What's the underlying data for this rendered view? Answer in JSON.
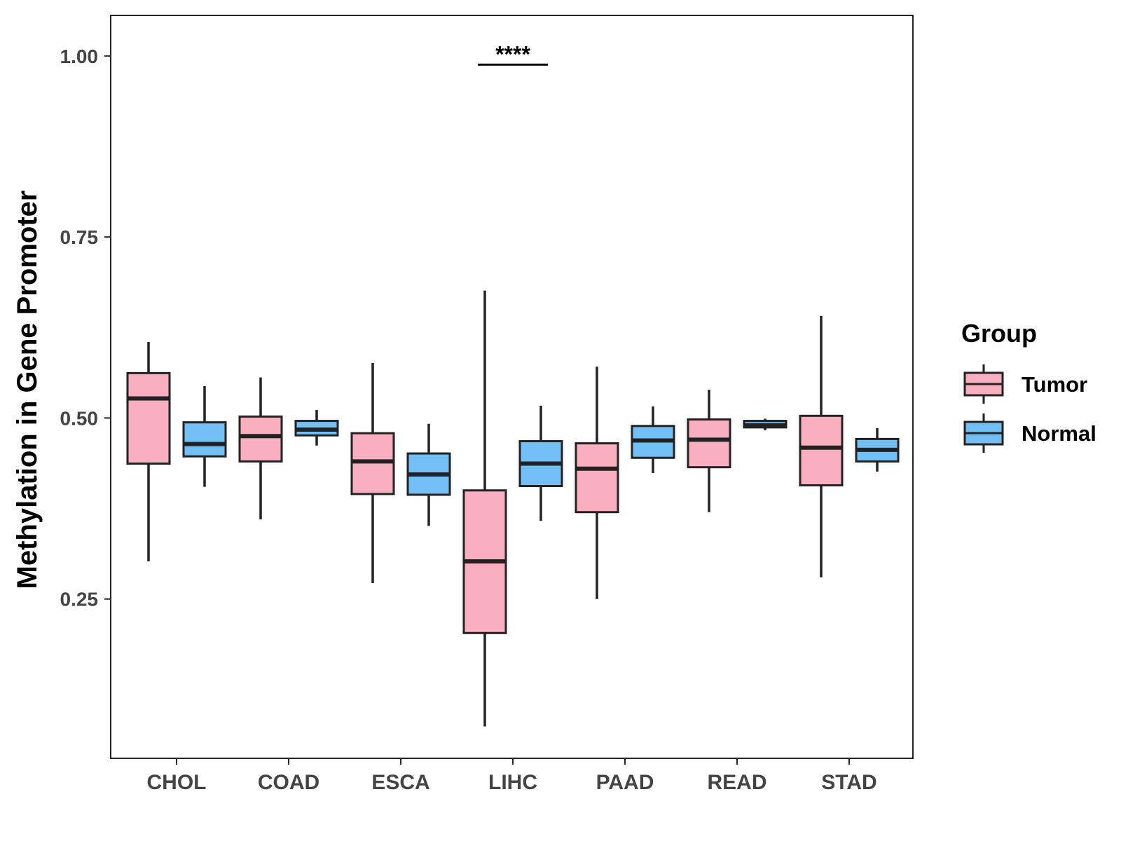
{
  "chart_data": {
    "type": "boxplot",
    "title": "",
    "xlabel": "",
    "ylabel": "Methylation in Gene Promoter",
    "ylim": [
      0.03,
      1.056
    ],
    "yticks": [
      0.25,
      0.5,
      0.75,
      1.0
    ],
    "ytick_labels": [
      "0.25",
      "0.50",
      "0.75",
      "1.00"
    ],
    "grid": false,
    "categories": [
      "CHOL",
      "COAD",
      "ESCA",
      "LIHC",
      "PAAD",
      "READ",
      "STAD"
    ],
    "legend": {
      "title": "Group",
      "position": "right",
      "entries": [
        "Tumor",
        "Normal"
      ]
    },
    "series": [
      {
        "name": "Tumor",
        "color": "#F9AFC0",
        "boxes": [
          {
            "whisker_low": 0.302,
            "q1": 0.437,
            "median": 0.527,
            "q3": 0.562,
            "whisker_high": 0.605
          },
          {
            "whisker_low": 0.36,
            "q1": 0.44,
            "median": 0.475,
            "q3": 0.502,
            "whisker_high": 0.556
          },
          {
            "whisker_low": 0.272,
            "q1": 0.395,
            "median": 0.44,
            "q3": 0.479,
            "whisker_high": 0.576
          },
          {
            "whisker_low": 0.074,
            "q1": 0.203,
            "median": 0.302,
            "q3": 0.4,
            "whisker_high": 0.676
          },
          {
            "whisker_low": 0.25,
            "q1": 0.37,
            "median": 0.43,
            "q3": 0.465,
            "whisker_high": 0.571
          },
          {
            "whisker_low": 0.37,
            "q1": 0.432,
            "median": 0.47,
            "q3": 0.498,
            "whisker_high": 0.539
          },
          {
            "whisker_low": 0.28,
            "q1": 0.407,
            "median": 0.459,
            "q3": 0.503,
            "whisker_high": 0.641
          }
        ]
      },
      {
        "name": "Normal",
        "color": "#72BFF5",
        "boxes": [
          {
            "whisker_low": 0.405,
            "q1": 0.447,
            "median": 0.464,
            "q3": 0.494,
            "whisker_high": 0.544
          },
          {
            "whisker_low": 0.462,
            "q1": 0.476,
            "median": 0.484,
            "q3": 0.496,
            "whisker_high": 0.511
          },
          {
            "whisker_low": 0.351,
            "q1": 0.394,
            "median": 0.422,
            "q3": 0.451,
            "whisker_high": 0.492
          },
          {
            "whisker_low": 0.358,
            "q1": 0.406,
            "median": 0.437,
            "q3": 0.468,
            "whisker_high": 0.517
          },
          {
            "whisker_low": 0.424,
            "q1": 0.445,
            "median": 0.469,
            "q3": 0.489,
            "whisker_high": 0.516
          },
          {
            "whisker_low": 0.483,
            "q1": 0.487,
            "median": 0.49,
            "q3": 0.496,
            "whisker_high": 0.499
          },
          {
            "whisker_low": 0.426,
            "q1": 0.44,
            "median": 0.456,
            "q3": 0.471,
            "whisker_high": 0.486
          }
        ]
      }
    ],
    "annotations": [
      {
        "text": "****",
        "category": "LIHC",
        "y": 0.988
      }
    ]
  }
}
